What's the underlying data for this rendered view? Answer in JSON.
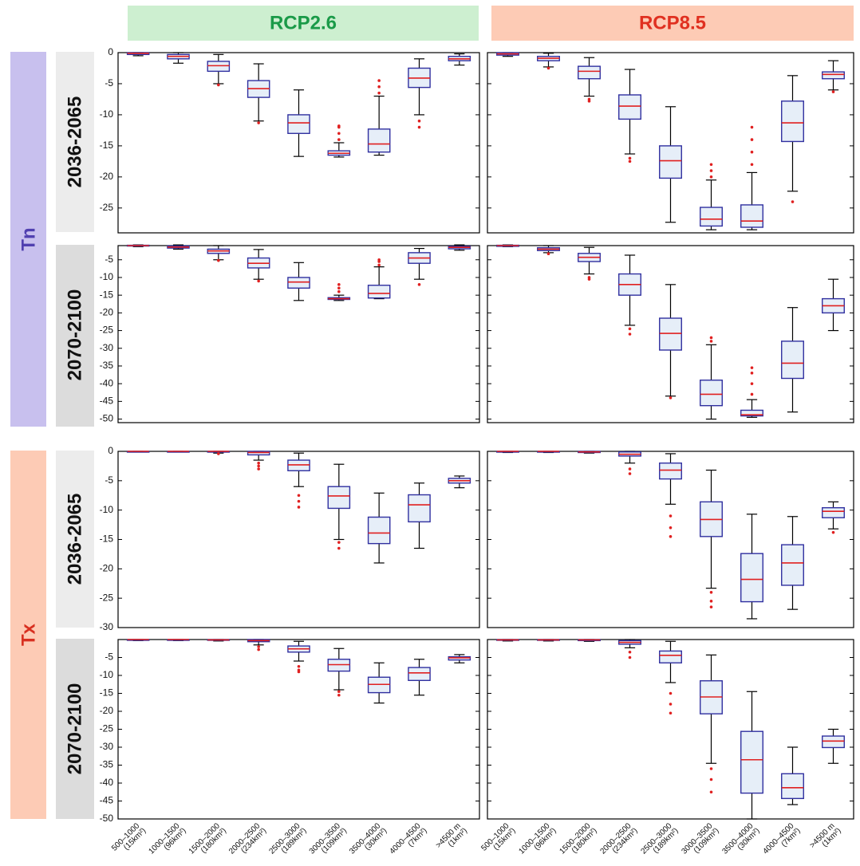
{
  "columns": [
    "RCP2.6",
    "RCP8.5"
  ],
  "variables": [
    "Tn",
    "Tx"
  ],
  "periods": [
    "2036-2065",
    "2070-2100"
  ],
  "categories": [
    {
      "range": "500–1000",
      "area": "(15km²)"
    },
    {
      "range": "1000–1500",
      "area": "(96km²)"
    },
    {
      "range": "1500–2000",
      "area": "(180km²)"
    },
    {
      "range": "2000–2500",
      "area": "(234km²)"
    },
    {
      "range": "2500–3000",
      "area": "(189km²)"
    },
    {
      "range": "3000–3500",
      "area": "(109km²)"
    },
    {
      "range": "3500–4000",
      "area": "(30km²)"
    },
    {
      "range": "4000–4500",
      "area": "(7km²)"
    },
    {
      "range": ">4500 m",
      "area": "(1km²)"
    }
  ],
  "chart_data": [
    {
      "type": "box",
      "ylim": [
        -29,
        0
      ],
      "yticks": [
        0,
        -5,
        -10,
        -15,
        -20,
        -25
      ],
      "box_color": "#3030a0",
      "box_fill": "#e6eef8",
      "median_color": "#e02020",
      "outlier_color": "#e02020",
      "panels": [
        {
          "boxes": [
            [
              -0.5,
              -0.3,
              -0.1,
              0,
              0
            ],
            [
              -1.7,
              -1.0,
              -0.6,
              -0.3,
              0
            ],
            [
              -5,
              -3,
              -2.1,
              -1.4,
              -0.3
            ],
            [
              -11,
              -7.2,
              -5.8,
              -4.5,
              -1.8
            ],
            [
              -16.7,
              -13,
              -11.3,
              -10,
              -6
            ],
            [
              -16.8,
              -16.5,
              -16.2,
              -15.8,
              -14.5
            ],
            [
              -16.5,
              -16,
              -14.7,
              -12.3,
              -7
            ],
            [
              -10,
              -5.6,
              -4.1,
              -2.5,
              -1
            ],
            [
              -2,
              -1.3,
              -1,
              -0.6,
              -0.2
            ]
          ],
          "outliers": [
            [],
            [],
            [
              -5.2
            ],
            [
              -11.3
            ],
            [],
            [
              -14,
              -13,
              -12,
              -11.8
            ],
            [
              -6.5,
              -5.5,
              -4.5
            ],
            [
              -11,
              -12
            ],
            []
          ]
        },
        {
          "boxes": [
            [
              -0.6,
              -0.4,
              -0.2,
              0,
              0
            ],
            [
              -2.3,
              -1.3,
              -0.9,
              -0.6,
              -0.1
            ],
            [
              -7,
              -4.2,
              -3,
              -2.2,
              -0.8
            ],
            [
              -16.3,
              -10.7,
              -8.6,
              -6.8,
              -2.7
            ],
            [
              -27.3,
              -20.2,
              -17.4,
              -15,
              -8.7
            ],
            [
              -28.5,
              -27.9,
              -26.8,
              -24.9,
              -20.5
            ],
            [
              -28.5,
              -28.1,
              -27.1,
              -24.5,
              -19.3
            ],
            [
              -22.3,
              -14.3,
              -11.3,
              -7.8,
              -3.7
            ],
            [
              -6,
              -4.2,
              -3.5,
              -3.1,
              -1.3
            ]
          ],
          "outliers": [
            [],
            [
              -2.5
            ],
            [
              -7.5,
              -7.8
            ],
            [
              -17,
              -17.5
            ],
            [],
            [
              -20,
              -19,
              -18
            ],
            [
              -18,
              -16,
              -14,
              -12
            ],
            [
              -24
            ],
            [
              -6.3
            ]
          ]
        }
      ]
    },
    {
      "type": "box",
      "ylim": [
        -51,
        -1
      ],
      "yticks": [
        -5,
        -10,
        -15,
        -20,
        -25,
        -30,
        -35,
        -40,
        -45,
        -50
      ],
      "box_color": "#3030a0",
      "box_fill": "#e6eef8",
      "median_color": "#e02020",
      "outlier_color": "#e02020",
      "panels": [
        {
          "boxes": [
            [
              -1.3,
              -1.1,
              -1,
              -0.9,
              -0.8
            ],
            [
              -2,
              -1.7,
              -1.4,
              -1.1,
              -0.8
            ],
            [
              -5,
              -3.2,
              -2.5,
              -2,
              -1
            ],
            [
              -10.5,
              -7.3,
              -6,
              -4.5,
              -2.1
            ],
            [
              -16.5,
              -13,
              -11.3,
              -10,
              -5.8
            ],
            [
              -16.5,
              -16.2,
              -16,
              -15.7,
              -15
            ],
            [
              -16,
              -15.8,
              -14.5,
              -12.2,
              -7
            ],
            [
              -10.5,
              -6,
              -4.5,
              -3,
              -1.8
            ],
            [
              -2.3,
              -1.9,
              -1.5,
              -1.2,
              -0.8
            ]
          ],
          "outliers": [
            [],
            [],
            [
              -5.2
            ],
            [
              -11
            ],
            [],
            [
              -14,
              -13,
              -12
            ],
            [
              -6.5,
              -5.5,
              -5
            ],
            [
              -12
            ],
            []
          ]
        },
        {
          "boxes": [
            [
              -1.3,
              -1.2,
              -1,
              -0.9,
              -0.8
            ],
            [
              -3,
              -2.4,
              -2,
              -1.6,
              -1
            ],
            [
              -9,
              -5.5,
              -4.3,
              -3.2,
              -1.5
            ],
            [
              -23.5,
              -15,
              -12,
              -9,
              -3.7
            ],
            [
              -43.5,
              -30.5,
              -25.8,
              -21.5,
              -12
            ],
            [
              -50,
              -46.2,
              -43,
              -39,
              -29
            ],
            [
              -49.5,
              -49.1,
              -48.8,
              -47.5,
              -44.5
            ],
            [
              -48,
              -38.5,
              -34.2,
              -28,
              -18.5
            ],
            [
              -25,
              -20,
              -18,
              -16,
              -10.5
            ]
          ],
          "outliers": [
            [],
            [
              -3.3
            ],
            [
              -10,
              -10.5
            ],
            [
              -24.5,
              -26
            ],
            [
              -44
            ],
            [
              -28,
              -27
            ],
            [
              -43,
              -40,
              -37,
              -35.5
            ],
            [],
            []
          ]
        }
      ]
    },
    {
      "type": "box",
      "ylim": [
        -30,
        0
      ],
      "yticks": [
        0,
        -5,
        -10,
        -15,
        -20,
        -25,
        -30
      ],
      "box_color": "#3030a0",
      "box_fill": "#e6eef8",
      "median_color": "#e02020",
      "outlier_color": "#e02020",
      "panels": [
        {
          "boxes": [
            [
              -0.1,
              -0.05,
              0,
              0,
              0
            ],
            [
              -0.1,
              -0.05,
              0,
              0,
              0
            ],
            [
              -0.3,
              -0.1,
              0,
              0,
              0
            ],
            [
              -1.5,
              -0.6,
              -0.2,
              0,
              0
            ],
            [
              -6,
              -3.3,
              -2.3,
              -1.5,
              -0.3
            ],
            [
              -15,
              -9.7,
              -7.6,
              -6,
              -2.2
            ],
            [
              -19,
              -15.7,
              -13.9,
              -11.2,
              -7.1
            ],
            [
              -16.5,
              -12,
              -9.1,
              -7.4,
              -5.4
            ],
            [
              -6.2,
              -5.4,
              -5,
              -4.6,
              -4.2
            ]
          ],
          "outliers": [
            [],
            [],
            [
              -0.4
            ],
            [
              -2,
              -2.5,
              -3
            ],
            [
              -7.5,
              -8.5,
              -9.5
            ],
            [
              -15.5,
              -16.5
            ],
            [],
            [],
            []
          ]
        },
        {
          "boxes": [
            [
              -0.2,
              -0.1,
              0,
              0,
              0
            ],
            [
              -0.2,
              -0.1,
              0,
              0,
              0
            ],
            [
              -0.3,
              -0.2,
              -0.1,
              0,
              0
            ],
            [
              -2,
              -0.8,
              -0.5,
              -0.1,
              0
            ],
            [
              -9,
              -4.7,
              -3.2,
              -2,
              -0.4
            ],
            [
              -23.3,
              -14.5,
              -11.6,
              -8.6,
              -3.2
            ],
            [
              -28.5,
              -25.6,
              -21.8,
              -17.4,
              -10.7
            ],
            [
              -26.9,
              -22.8,
              -19,
              -15.9,
              -11.1
            ],
            [
              -13.2,
              -11.3,
              -10.2,
              -9.6,
              -8.6
            ]
          ],
          "outliers": [
            [],
            [],
            [],
            [
              -3,
              -3.8
            ],
            [
              -11,
              -13,
              -14.5
            ],
            [
              -24,
              -25.5,
              -26.5
            ],
            [],
            [],
            [
              -13.8
            ]
          ]
        }
      ]
    },
    {
      "type": "box",
      "ylim": [
        -50,
        0
      ],
      "yticks": [
        -5,
        -10,
        -15,
        -20,
        -25,
        -30,
        -35,
        -40,
        -45,
        -50
      ],
      "box_color": "#3030a0",
      "box_fill": "#e6eef8",
      "median_color": "#e02020",
      "outlier_color": "#e02020",
      "panels": [
        {
          "boxes": [
            [
              -0.3,
              -0.1,
              0,
              0,
              0
            ],
            [
              -0.3,
              -0.1,
              0,
              0,
              0
            ],
            [
              -0.4,
              -0.2,
              -0.1,
              0,
              0
            ],
            [
              -1.5,
              -0.6,
              -0.3,
              0,
              0
            ],
            [
              -6,
              -3.5,
              -2.6,
              -1.8,
              -0.5
            ],
            [
              -14,
              -8.8,
              -7,
              -5.5,
              -2.5
            ],
            [
              -17.7,
              -14.8,
              -12.5,
              -10.5,
              -6.5
            ],
            [
              -15.5,
              -11.4,
              -9.3,
              -7.8,
              -5.5
            ],
            [
              -6.5,
              -5.7,
              -5.1,
              -4.8,
              -4.2
            ]
          ],
          "outliers": [
            [],
            [],
            [],
            [
              -2,
              -2.8
            ],
            [
              -7.5,
              -8.5,
              -9
            ],
            [
              -14.5,
              -15.5
            ],
            [],
            [],
            []
          ]
        },
        {
          "boxes": [
            [
              -0.4,
              -0.2,
              -0.1,
              0,
              0
            ],
            [
              -0.4,
              -0.2,
              -0.1,
              0,
              0
            ],
            [
              -0.5,
              -0.3,
              -0.1,
              0,
              0
            ],
            [
              -2.3,
              -1.3,
              -0.8,
              -0.3,
              0
            ],
            [
              -12,
              -6.5,
              -4.4,
              -3.2,
              -0.5
            ],
            [
              -34.5,
              -20.7,
              -16,
              -11.5,
              -4.3
            ],
            [
              -50,
              -42.8,
              -33.5,
              -25.6,
              -14.5
            ],
            [
              -46,
              -44.3,
              -41.3,
              -37.4,
              -30
            ],
            [
              -34.5,
              -30.1,
              -28.3,
              -26.9,
              -25
            ]
          ],
          "outliers": [
            [],
            [],
            [],
            [
              -3.5,
              -5
            ],
            [
              -15,
              -18,
              -20.5
            ],
            [
              -36,
              -39,
              -42.5
            ],
            [],
            [],
            []
          ]
        }
      ]
    }
  ]
}
